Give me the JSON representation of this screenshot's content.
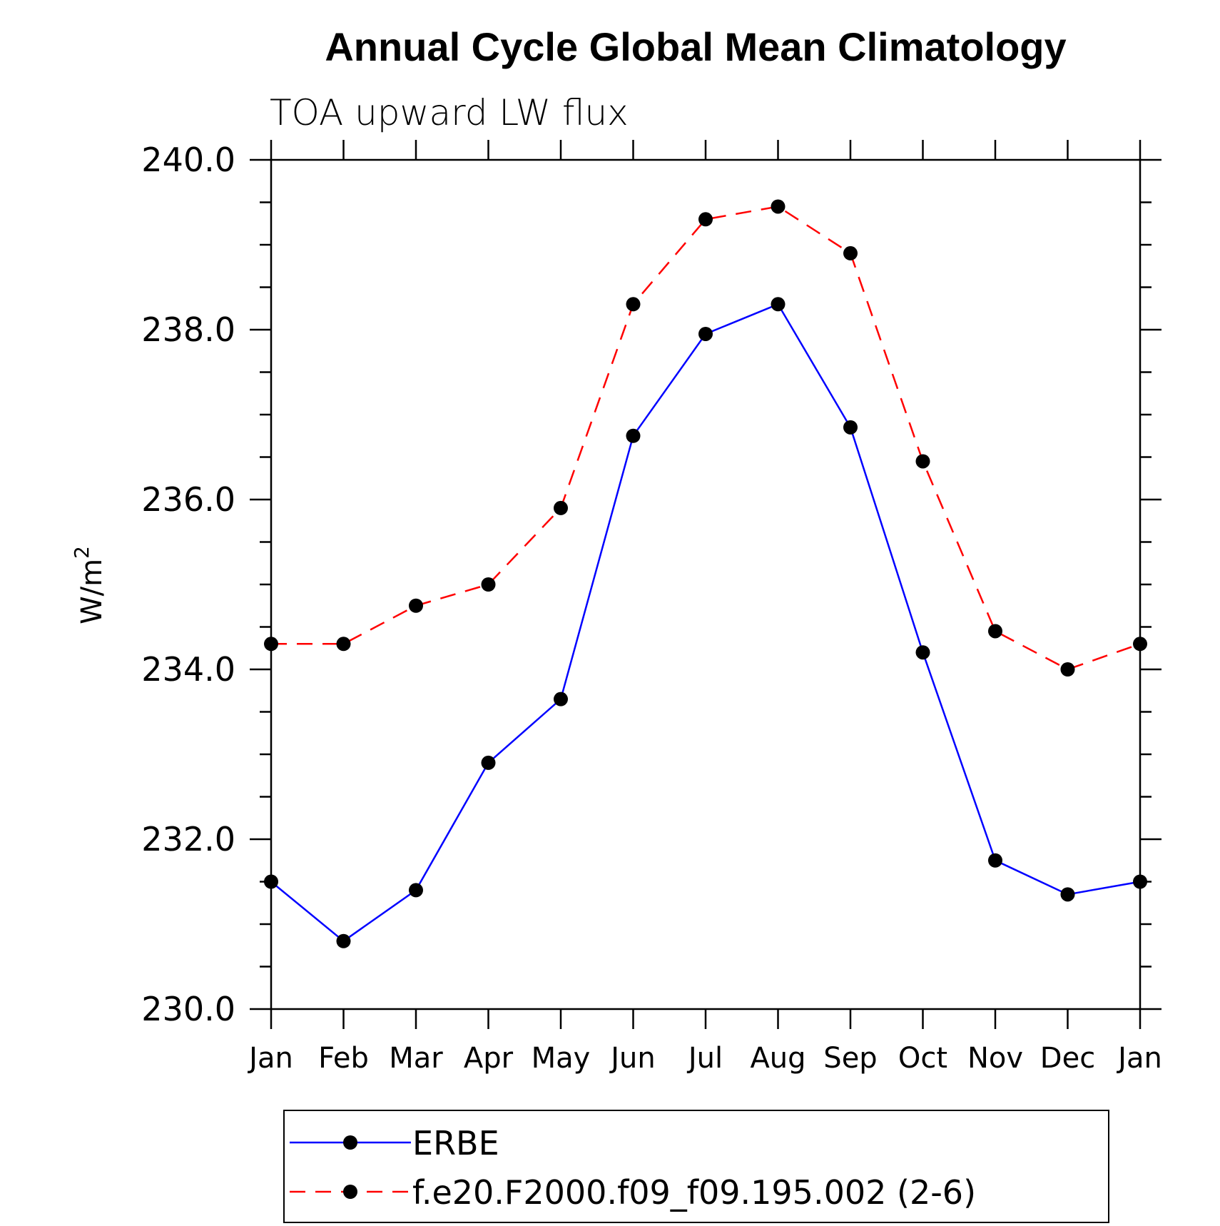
{
  "chart_data": {
    "type": "line",
    "title": "Annual Cycle Global Mean Climatology",
    "subtitle": "TOA upward LW flux",
    "ylabel": "W/m",
    "ylabel_sup": "2",
    "xlabel": "",
    "categories": [
      "Jan",
      "Feb",
      "Mar",
      "Apr",
      "May",
      "Jun",
      "Jul",
      "Aug",
      "Sep",
      "Oct",
      "Nov",
      "Dec",
      "Jan"
    ],
    "ylim": [
      230.0,
      240.0
    ],
    "yticks": [
      "230.0",
      "232.0",
      "234.0",
      "236.0",
      "238.0",
      "240.0"
    ],
    "grid": false,
    "legend_position": "bottom",
    "series": [
      {
        "name": "ERBE",
        "color": "#0000ff",
        "line_style": "solid",
        "marker": "filled-circle",
        "values": [
          231.5,
          230.8,
          231.4,
          232.9,
          233.65,
          236.75,
          237.95,
          238.3,
          236.85,
          234.2,
          231.75,
          231.35,
          231.5
        ]
      },
      {
        "name": "f.e20.F2000.f09_f09.195.002 (2-6)",
        "color": "#ff0000",
        "line_style": "dashed",
        "marker": "filled-circle",
        "values": [
          234.3,
          234.3,
          234.75,
          235.0,
          235.9,
          238.3,
          239.3,
          239.45,
          238.9,
          236.45,
          234.45,
          234.0,
          234.3
        ]
      }
    ]
  }
}
